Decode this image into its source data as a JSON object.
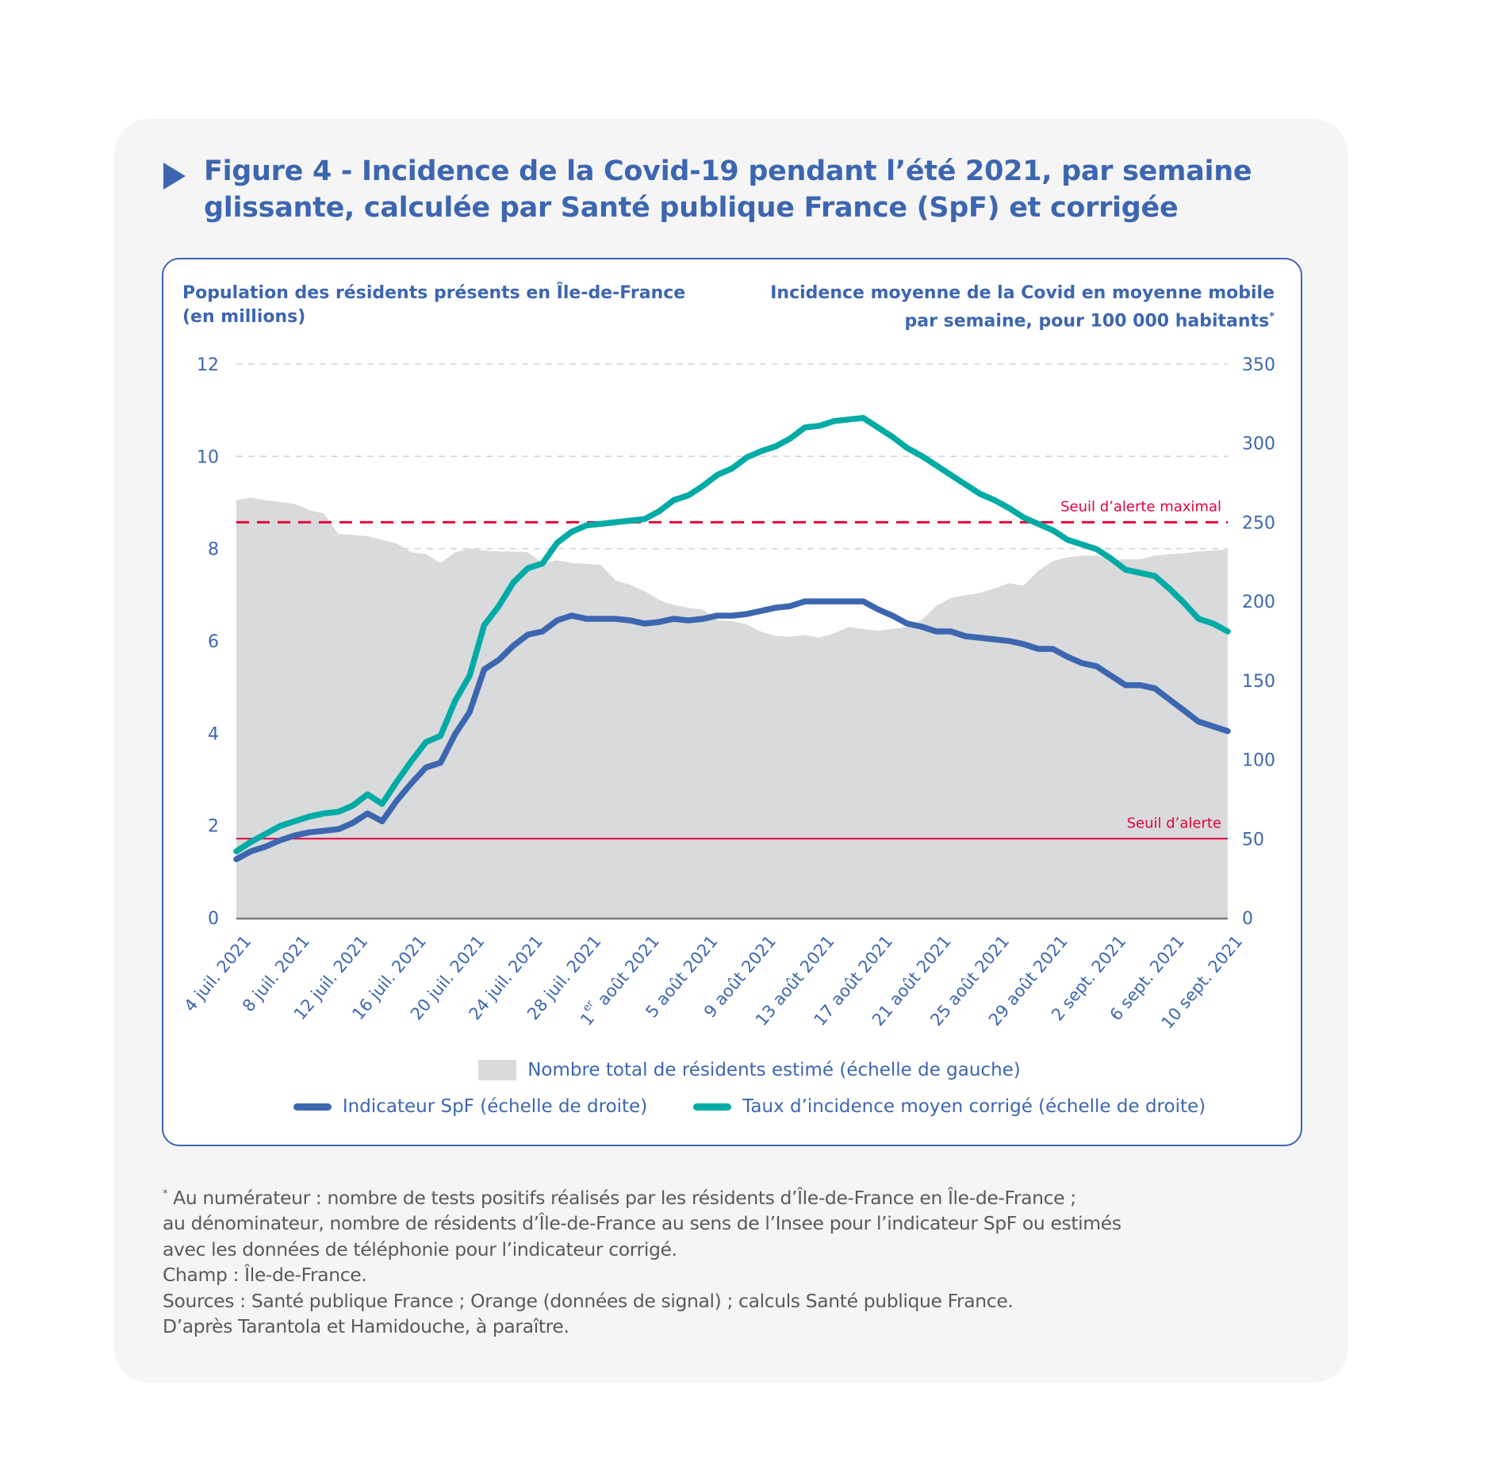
{
  "figure": {
    "title": "Figure 4 - Incidence de la Covid-19 pendant l’été 2021, par semaine glissante, calculée par Santé publique France (SpF) et corrigée",
    "title_line1": "Figure 4 - Incidence de la Covid-19 pendant l’été 2021, par semaine",
    "title_line2": "glissante, calculée par Santé publique France (SpF) et corrigée",
    "left_axis_title_line1": "Population des résidents présents en Île-de-France",
    "left_axis_title_line2": "(en millions)",
    "right_axis_title_line1": "Incidence moyenne de la Covid en moyenne mobile",
    "right_axis_title_line2": "par semaine, pour 100 000 habitants",
    "right_axis_title_marker": "*",
    "colors": {
      "accent": "#3d66b0",
      "spf_line": "#3d66b0",
      "corrected_line": "#00aba5",
      "area": "#d9dadb",
      "threshold": "#e4003a",
      "panel_bg": "#f5f5f5",
      "footnote_text": "#5a5a5a"
    }
  },
  "chart_data": {
    "type": "line",
    "title": "Figure 4 - Incidence de la Covid-19 pendant l’été 2021, par semaine glissante, calculée par Santé publique France (SpF) et corrigée",
    "xlabel": "",
    "ylabel_left": "Population des résidents présents en Île-de-France (en millions)",
    "ylabel_right": "Incidence moyenne de la Covid en moyenne mobile par semaine, pour 100 000 habitants*",
    "x_start": "2021-07-04",
    "x_end": "2021-09-10",
    "x_days": 68,
    "x_ticks": [
      {
        "day": 0,
        "label": "4 juil. 2021"
      },
      {
        "day": 4,
        "label": "8 juil. 2021"
      },
      {
        "day": 8,
        "label": "12 juil. 2021"
      },
      {
        "day": 12,
        "label": "16 juil. 2021"
      },
      {
        "day": 16,
        "label": "20 juil. 2021"
      },
      {
        "day": 20,
        "label": "24 juil. 2021"
      },
      {
        "day": 24,
        "label": "28 juil. 2021"
      },
      {
        "day": 28,
        "label": "1 août 2021",
        "prefix": "1",
        "superscript": "er",
        "suffix": " août 2021"
      },
      {
        "day": 32,
        "label": "5 août 2021"
      },
      {
        "day": 36,
        "label": "9 août 2021"
      },
      {
        "day": 40,
        "label": "13 août 2021"
      },
      {
        "day": 44,
        "label": "17 août 2021"
      },
      {
        "day": 48,
        "label": "21 août 2021"
      },
      {
        "day": 52,
        "label": "25 août 2021"
      },
      {
        "day": 56,
        "label": "29 août 2021"
      },
      {
        "day": 60,
        "label": "2 sept. 2021"
      },
      {
        "day": 64,
        "label": "6 sept. 2021"
      },
      {
        "day": 68,
        "label": "10 sept. 2021"
      }
    ],
    "y_left": {
      "min": 0,
      "max": 12,
      "ticks": [
        0,
        2,
        4,
        6,
        8,
        10,
        12
      ],
      "gridlines": [
        8,
        10,
        12
      ]
    },
    "y_right": {
      "min": 0,
      "max": 350,
      "ticks": [
        0,
        50,
        100,
        150,
        200,
        250,
        300,
        350
      ]
    },
    "grid": "dashed horizontal at upper left-axis ticks",
    "thresholds": [
      {
        "name": "Seuil d’alerte maximal",
        "value": 250,
        "axis": "right",
        "style": "dashed"
      },
      {
        "name": "Seuil d’alerte",
        "value": 50,
        "axis": "right",
        "style": "solid"
      }
    ],
    "legend_position": "bottom-center",
    "series": [
      {
        "name": "Nombre total de résidents estimé (échelle de gauche)",
        "kind": "area",
        "axis": "left",
        "values": [
          9.05,
          9.11,
          9.05,
          9.01,
          8.97,
          8.84,
          8.76,
          8.32,
          8.3,
          8.27,
          8.19,
          8.11,
          7.92,
          7.88,
          7.69,
          7.92,
          8.0,
          7.96,
          7.94,
          7.94,
          7.92,
          7.69,
          7.75,
          7.69,
          7.67,
          7.65,
          7.31,
          7.22,
          7.08,
          6.89,
          6.78,
          6.72,
          6.68,
          6.45,
          6.43,
          6.36,
          6.2,
          6.11,
          6.09,
          6.13,
          6.07,
          6.17,
          6.3,
          6.26,
          6.22,
          6.26,
          6.3,
          6.45,
          6.76,
          6.93,
          6.99,
          7.04,
          7.14,
          7.25,
          7.2,
          7.52,
          7.73,
          7.81,
          7.85,
          7.85,
          7.75,
          7.77,
          7.77,
          7.85,
          7.88,
          7.9,
          7.94,
          7.96,
          7.98
        ]
      },
      {
        "name": "Indicateur SpF (échelle de droite)",
        "kind": "line",
        "axis": "right",
        "values": [
          37,
          42,
          45,
          49,
          52,
          54,
          55,
          56,
          60,
          66,
          61,
          74,
          85,
          95,
          98,
          116,
          130,
          157,
          163,
          172,
          179,
          181,
          188,
          191,
          189,
          189,
          189,
          188,
          186,
          187,
          189,
          188,
          189,
          191,
          191,
          192,
          194,
          196,
          197,
          200,
          200,
          200,
          200,
          200,
          195,
          191,
          186,
          184,
          181,
          181,
          178,
          177,
          176,
          175,
          173,
          170,
          170,
          165,
          161,
          159,
          153,
          147,
          147,
          145,
          138,
          131,
          124,
          121,
          118
        ]
      },
      {
        "name": "Taux d’incidence moyen corrigé (échelle de droite)",
        "kind": "line",
        "axis": "right",
        "values": [
          42,
          48,
          53,
          58,
          61,
          64,
          66,
          67,
          71,
          78,
          72,
          86,
          99,
          111,
          115,
          137,
          153,
          185,
          197,
          212,
          221,
          224,
          237,
          244,
          248,
          249,
          250,
          251,
          252,
          257,
          264,
          267,
          273,
          280,
          284,
          291,
          295,
          298,
          303,
          310,
          311,
          314,
          315,
          316,
          310,
          304,
          297,
          292,
          286,
          280,
          274,
          268,
          264,
          259,
          253,
          249,
          245,
          239,
          236,
          233,
          227,
          220,
          218,
          216,
          208,
          199,
          189,
          186,
          181
        ]
      }
    ]
  },
  "legend": {
    "area_label": "Nombre total de résidents estimé (échelle de gauche)",
    "spf_label": "Indicateur SpF (échelle de droite)",
    "corrected_label": "Taux d’incidence moyen corrigé (échelle de droite)"
  },
  "footnote": {
    "marker": "*",
    "line1": " Au numérateur : nombre de tests positifs réalisés par les résidents d’Île-de-France en Île-de-France ;",
    "line2": "au dénominateur, nombre de résidents d’Île-de-France au sens de l’Insee pour l’indicateur SpF ou estimés",
    "line3": "avec les données de téléphonie pour l’indicateur corrigé.",
    "champ": "Champ : Île-de-France.",
    "sources": "Sources : Santé publique France ; Orange (données de signal) ; calculs Santé publique France.",
    "credit": "D’après Tarantola et Hamidouche, à paraître."
  }
}
